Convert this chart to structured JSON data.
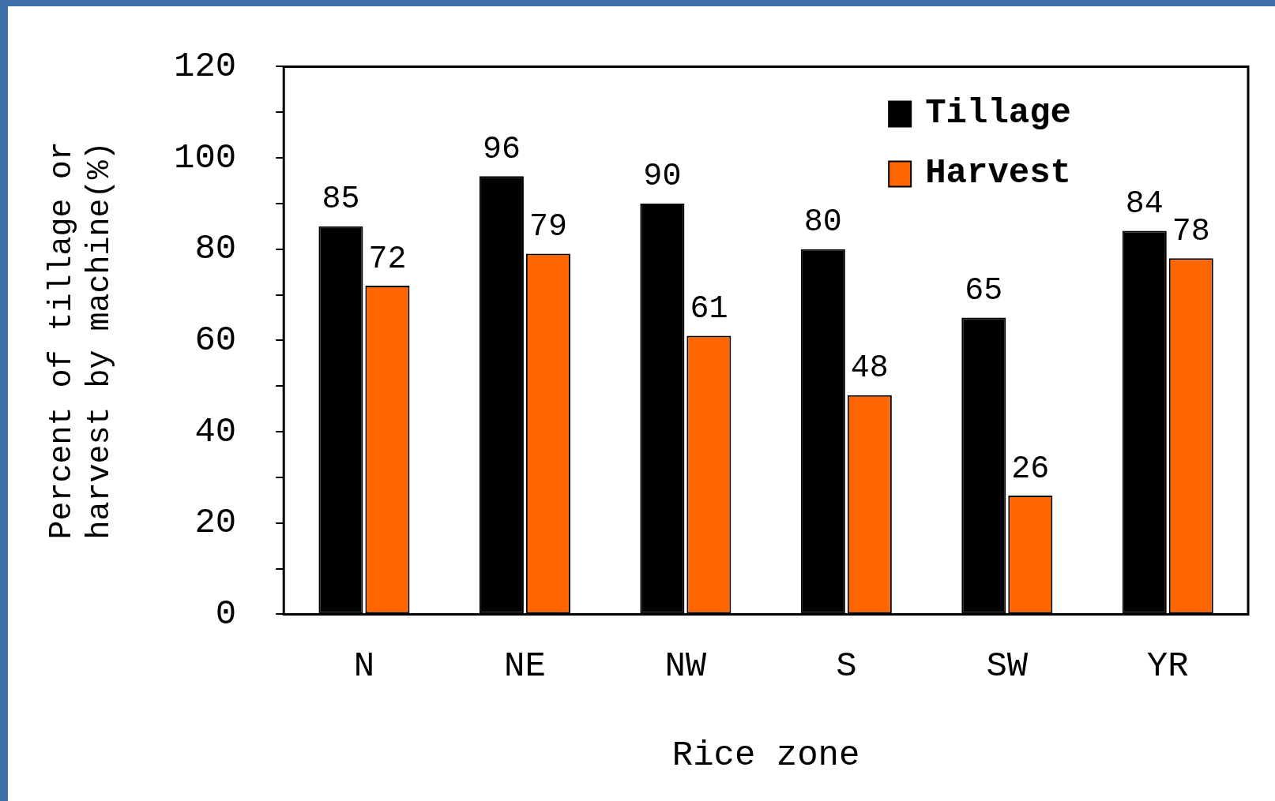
{
  "chart_data": {
    "type": "bar",
    "xlabel": "Rice zone",
    "ylabel": "Percent of tillage or\nharvest by machine(%)",
    "categories": [
      "N",
      "NE",
      "NW",
      "S",
      "SW",
      "YR"
    ],
    "series": [
      {
        "name": "Tillage",
        "color": "#000000",
        "values": [
          85,
          96,
          90,
          80,
          65,
          84
        ]
      },
      {
        "name": "Harvest",
        "color": "#ff6600",
        "values": [
          72,
          79,
          61,
          48,
          26,
          78
        ]
      }
    ],
    "ylim": [
      0,
      120
    ],
    "yticks": [
      0,
      {
        "value": 10,
        "label": null
      },
      20,
      {
        "value": 30,
        "label": null
      },
      40,
      {
        "value": 50,
        "label": null
      },
      60,
      {
        "value": 70,
        "label": null
      },
      80,
      {
        "value": 90,
        "label": null
      },
      100,
      {
        "value": 110,
        "label": null
      },
      120
    ],
    "grid": false,
    "legend": "top right",
    "data_labels": true
  }
}
